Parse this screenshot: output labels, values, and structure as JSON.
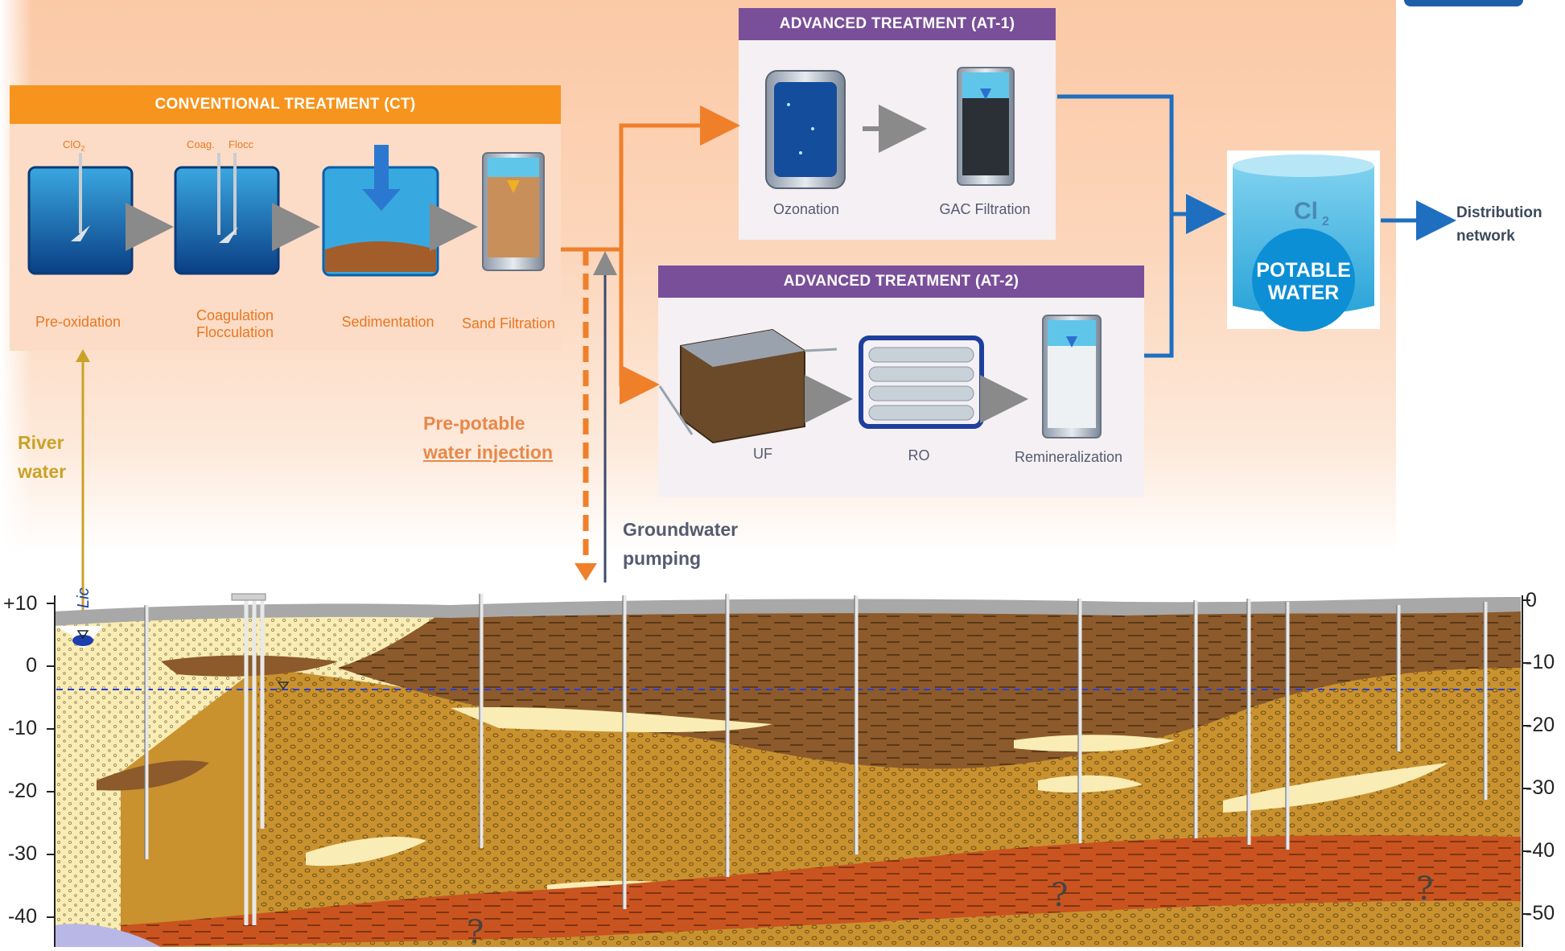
{
  "conventional": {
    "title": "CONVENTIONAL TREATMENT (CT)",
    "stages": [
      "Pre-oxidation",
      "Coagulation\nFlocculation",
      "Sedimentation",
      "Sand Filtration"
    ],
    "reagent_clo2": "ClO",
    "reagent_clo2_sub": "2",
    "reagent_coag": "Coag.",
    "reagent_flocc": "Flocc"
  },
  "advanced1": {
    "title": "ADVANCED TREATMENT (AT-1)",
    "stages": [
      "Ozonation",
      "GAC Filtration"
    ]
  },
  "advanced2": {
    "title": "ADVANCED TREATMENT (AT-2)",
    "stages": [
      "UF",
      "RO",
      "Remineralization"
    ]
  },
  "potable": {
    "chem": "Cl",
    "chem_sub": "2",
    "line1": "POTABLE",
    "line2": "WATER"
  },
  "notes": {
    "river_1": "River",
    "river_2": "water",
    "prepotable_1": "Pre-potable",
    "prepotable_2": "water injection",
    "groundwater_1": "Groundwater",
    "groundwater_2": "pumping",
    "distribution_1": "Distribution",
    "distribution_2": "network",
    "river_mark": "Lic"
  },
  "cross_section": {
    "left_axis": [
      "+10",
      "0",
      "-10",
      "-20",
      "-30",
      "-40"
    ],
    "right_axis": [
      "0",
      "-10",
      "-20",
      "-30",
      "-40",
      "-50"
    ],
    "unknown_marker": "?"
  },
  "colors": {
    "orange": "#f7941d",
    "purple": "#7a4f99",
    "blue_flow": "#1f6fc0",
    "water_blue": "#0d8fd6",
    "sand_pale": "#f9ecb4",
    "gravel_gold": "#c9922f",
    "clay_brown": "#8c5a2b",
    "deep_orange": "#c9541f"
  }
}
